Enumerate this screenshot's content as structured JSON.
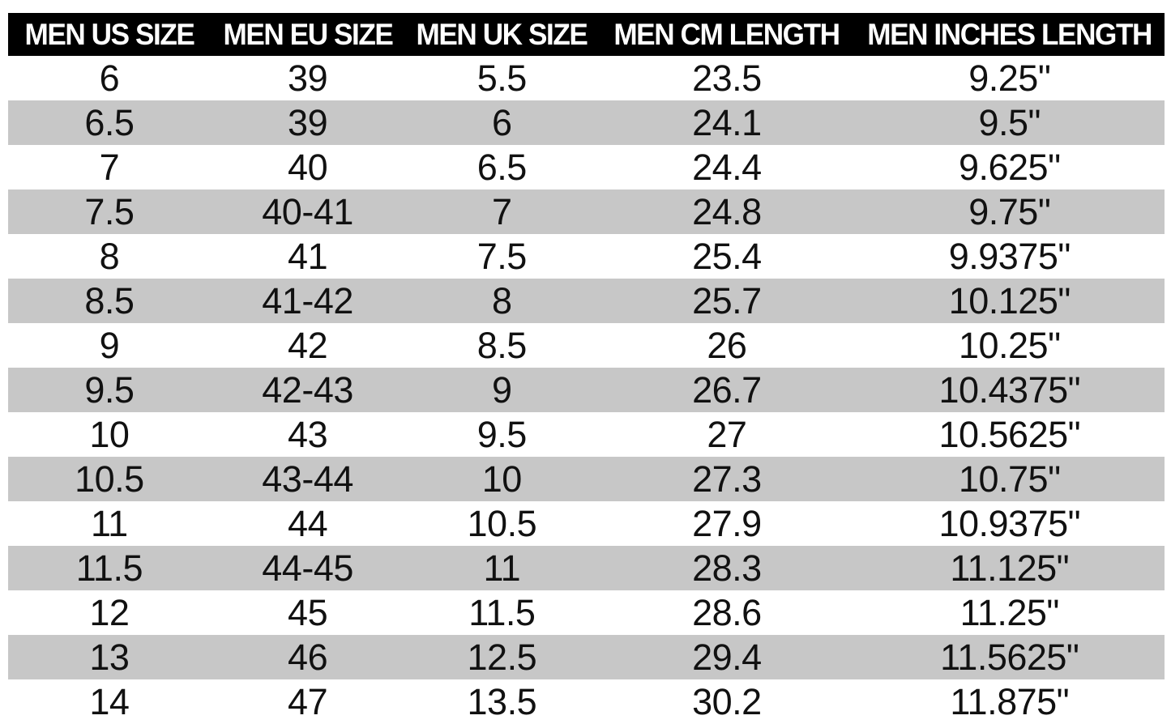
{
  "chart_data": {
    "type": "table",
    "columns": [
      "MEN US SIZE",
      "MEN EU SIZE",
      "MEN UK SIZE",
      "MEN CM LENGTH",
      "MEN INCHES LENGTH"
    ],
    "rows": [
      [
        "6",
        "39",
        "5.5",
        "23.5",
        "9.25\""
      ],
      [
        "6.5",
        "39",
        "6",
        "24.1",
        "9.5\""
      ],
      [
        "7",
        "40",
        "6.5",
        "24.4",
        "9.625\""
      ],
      [
        "7.5",
        "40-41",
        "7",
        "24.8",
        "9.75\""
      ],
      [
        "8",
        "41",
        "7.5",
        "25.4",
        "9.9375\""
      ],
      [
        "8.5",
        "41-42",
        "8",
        "25.7",
        "10.125\""
      ],
      [
        "9",
        "42",
        "8.5",
        "26",
        "10.25\""
      ],
      [
        "9.5",
        "42-43",
        "9",
        "26.7",
        "10.4375\""
      ],
      [
        "10",
        "43",
        "9.5",
        "27",
        "10.5625\""
      ],
      [
        "10.5",
        "43-44",
        "10",
        "27.3",
        "10.75\""
      ],
      [
        "11",
        "44",
        "10.5",
        "27.9",
        "10.9375\""
      ],
      [
        "11.5",
        "44-45",
        "11",
        "28.3",
        "11.125\""
      ],
      [
        "12",
        "45",
        "11.5",
        "28.6",
        "11.25\""
      ],
      [
        "13",
        "46",
        "12.5",
        "29.4",
        "11.5625\""
      ],
      [
        "14",
        "47",
        "13.5",
        "30.2",
        "11.875\""
      ]
    ],
    "layout": {
      "grid": false,
      "striped": true,
      "header_position": "top"
    }
  },
  "colors": {
    "header_bg": "#000000",
    "header_text": "#ffffff",
    "row_bg": "#ffffff",
    "row_alt_bg": "#c7c7c7",
    "cell_text": "#111111"
  }
}
